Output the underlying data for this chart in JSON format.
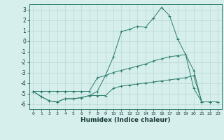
{
  "xlabel": "Humidex (Indice chaleur)",
  "x": [
    0,
    1,
    2,
    3,
    4,
    5,
    6,
    7,
    8,
    9,
    10,
    11,
    12,
    13,
    14,
    15,
    16,
    17,
    18,
    19,
    20,
    21,
    22,
    23
  ],
  "line_main": [
    -4.8,
    -5.3,
    -5.7,
    -5.8,
    -5.5,
    -5.5,
    -5.4,
    -5.2,
    -4.8,
    -3.3,
    -1.5,
    0.9,
    1.1,
    1.4,
    1.3,
    2.2,
    3.2,
    2.4,
    0.2,
    -1.3,
    -4.5,
    -5.8,
    -5.8,
    -5.8
  ],
  "line_upper": [
    -4.8,
    -4.8,
    -4.8,
    -4.8,
    -4.8,
    -4.8,
    -4.8,
    -4.8,
    -3.5,
    -3.3,
    -3.0,
    -2.8,
    -2.6,
    -2.4,
    -2.2,
    -1.9,
    -1.7,
    -1.5,
    -1.4,
    -1.3,
    -2.8,
    -5.8,
    -5.8,
    -5.8
  ],
  "line_lower": [
    -4.8,
    -5.3,
    -5.7,
    -5.8,
    -5.5,
    -5.5,
    -5.4,
    -5.2,
    -5.2,
    -5.2,
    -4.5,
    -4.3,
    -4.2,
    -4.1,
    -4.0,
    -3.9,
    -3.8,
    -3.7,
    -3.6,
    -3.5,
    -3.3,
    -5.8,
    -5.8,
    -5.8
  ],
  "line_color": "#2d7d6e",
  "bg_color": "#d6eeec",
  "grid_color": "#b8d8d4",
  "ylim": [
    -6.5,
    3.5
  ],
  "xlim": [
    -0.5,
    23.5
  ]
}
